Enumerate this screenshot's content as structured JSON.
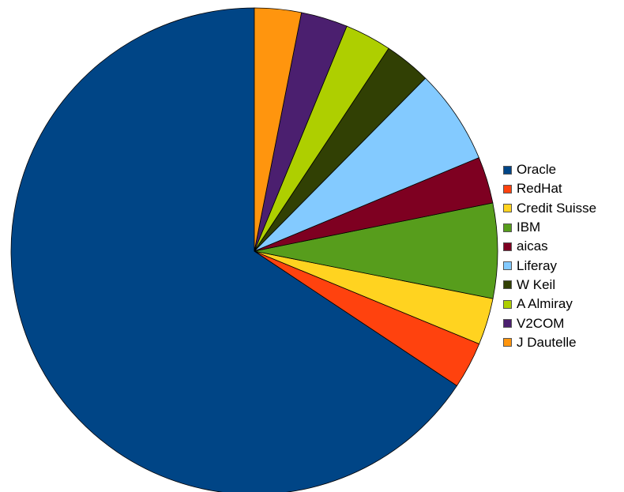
{
  "chart_data": {
    "type": "pie",
    "categories": [
      "Oracle",
      "RedHat",
      "Credit Suisse",
      "IBM",
      "aicas",
      "Liferay",
      "W Keil",
      "A Almiray",
      "V2COM",
      "J Dautelle"
    ],
    "values": [
      65.6,
      3.1,
      3.1,
      6.3,
      3.1,
      6.3,
      3.1,
      3.1,
      3.1,
      3.1
    ],
    "colors": [
      "#004586",
      "#ff420e",
      "#ffd320",
      "#579d1c",
      "#7e0021",
      "#83caff",
      "#314004",
      "#aecf00",
      "#4b1f6f",
      "#ff950e"
    ],
    "legend": "right"
  }
}
